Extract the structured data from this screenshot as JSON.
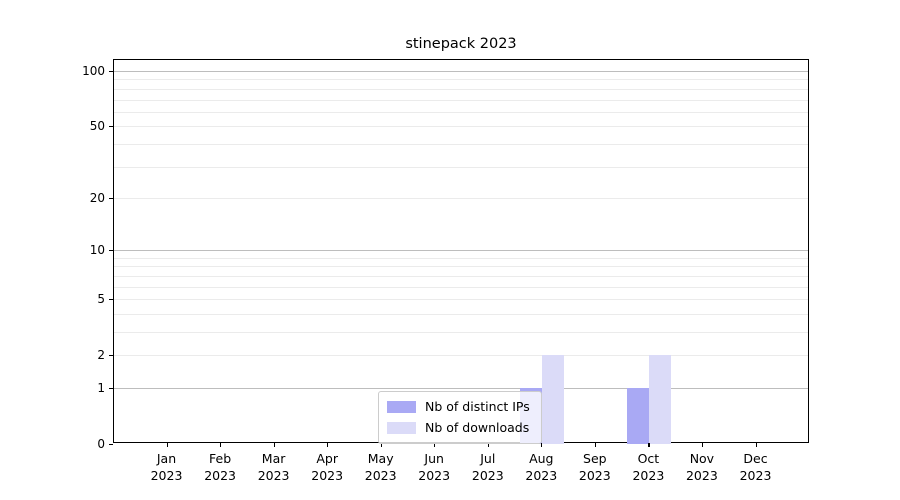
{
  "chart_data": {
    "type": "bar",
    "title": "stinepack 2023",
    "year_label": "2023",
    "categories": [
      "Jan",
      "Feb",
      "Mar",
      "Apr",
      "May",
      "Jun",
      "Jul",
      "Aug",
      "Sep",
      "Oct",
      "Nov",
      "Dec"
    ],
    "series": [
      {
        "name": "Nb of distinct IPs",
        "color": "#a9a9f4",
        "values": [
          0,
          0,
          0,
          0,
          0,
          0,
          0,
          1,
          0,
          1,
          0,
          0
        ]
      },
      {
        "name": "Nb of downloads",
        "color": "#dbdbf8",
        "values": [
          0,
          0,
          0,
          0,
          0,
          0,
          0,
          2,
          0,
          2,
          0,
          0
        ]
      }
    ],
    "yscale": "log1p",
    "yticks": [
      0,
      1,
      2,
      5,
      10,
      20,
      50,
      100
    ],
    "ylim": [
      0,
      115
    ],
    "grid": "on",
    "grid_major": [
      1,
      10,
      100
    ],
    "grid_minor": [
      2,
      3,
      4,
      5,
      6,
      7,
      8,
      9,
      20,
      30,
      40,
      50,
      60,
      70,
      80,
      90
    ],
    "legend_position": "lower center",
    "colors": {
      "axis": "#000000",
      "grid_major": "#bdbdbd",
      "grid_minor": "#ebebeb",
      "background": "#ffffff",
      "text": "#000000"
    }
  }
}
